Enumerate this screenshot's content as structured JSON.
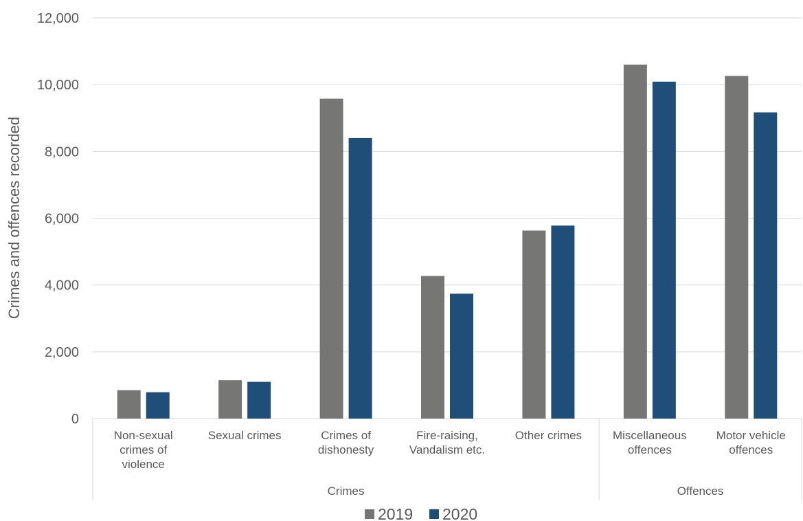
{
  "chart_data": {
    "type": "bar",
    "ylabel": "Crimes and offences recorded",
    "ylim": [
      0,
      12000
    ],
    "yticks": [
      0,
      2000,
      4000,
      6000,
      8000,
      10000,
      12000
    ],
    "ytick_labels": [
      "0",
      "2,000",
      "4,000",
      "6,000",
      "8,000",
      "10,000",
      "12,000"
    ],
    "categories": [
      "Non-sexual crimes of violence",
      "Sexual crimes",
      "Crimes of dishonesty",
      "Fire-raising, Vandalism etc.",
      "Other crimes",
      "Miscellaneous offences",
      "Motor vehicle offences"
    ],
    "category_label_lines": [
      [
        "Non-sexual",
        "crimes of",
        "violence"
      ],
      [
        "Sexual crimes"
      ],
      [
        "Crimes of",
        "dishonesty"
      ],
      [
        "Fire-raising,",
        "Vandalism etc."
      ],
      [
        "Other crimes"
      ],
      [
        "Miscellaneous",
        "offences"
      ],
      [
        "Motor vehicle",
        "offences"
      ]
    ],
    "groups": [
      {
        "label": "Crimes",
        "count": 5
      },
      {
        "label": "Offences",
        "count": 2
      }
    ],
    "series": [
      {
        "name": "2019",
        "color": "#767775",
        "values": [
          850,
          1150,
          9580,
          4270,
          5630,
          10600,
          10260
        ]
      },
      {
        "name": "2020",
        "color": "#1f4e79",
        "values": [
          790,
          1100,
          8400,
          3740,
          5780,
          10090,
          9170
        ]
      }
    ],
    "grid": true,
    "legend": "bottom-center"
  }
}
